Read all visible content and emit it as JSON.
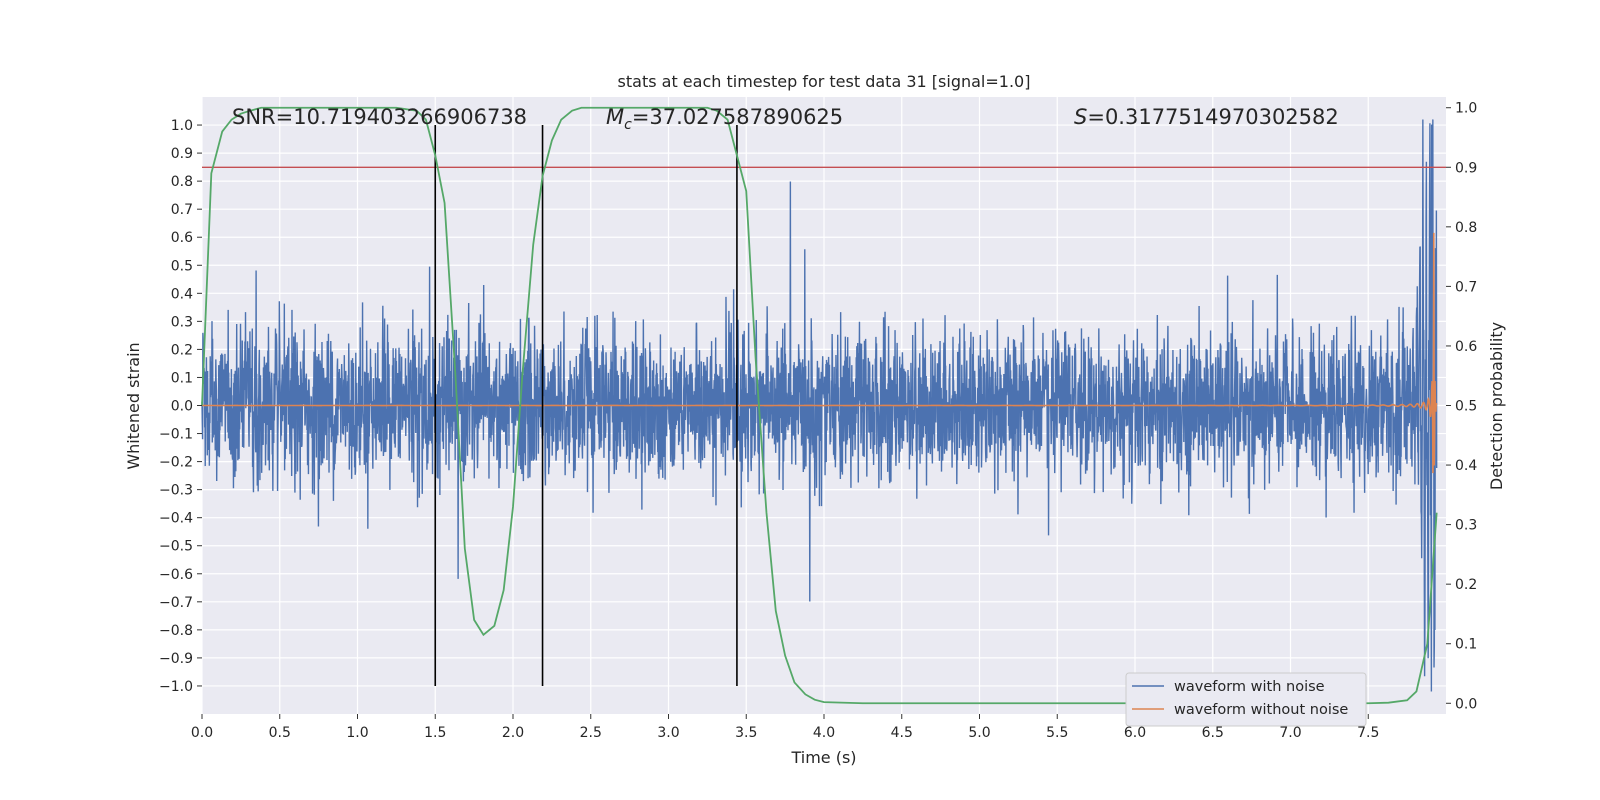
{
  "chart_data": {
    "type": "line",
    "title": "stats at each timestep for test data 31 [signal=1.0]",
    "xlabel": "Time (s)",
    "ylabel": "Whitened strain",
    "y2label": "Detection probability",
    "xlim": [
      0,
      8.0
    ],
    "ylim": [
      -1.1,
      1.1
    ],
    "y2lim": [
      -0.018,
      1.018
    ],
    "x_ticks": [
      "0.0",
      "0.5",
      "1.0",
      "1.5",
      "2.0",
      "2.5",
      "3.0",
      "3.5",
      "4.0",
      "4.5",
      "5.0",
      "5.5",
      "6.0",
      "6.5",
      "7.0",
      "7.5"
    ],
    "y_ticks": [
      "1.0",
      "0.9",
      "0.8",
      "0.7",
      "0.6",
      "0.5",
      "0.4",
      "0.3",
      "0.2",
      "0.1",
      "0.0",
      "−0.1",
      "−0.2",
      "−0.3",
      "−0.4",
      "−0.5",
      "−0.6",
      "−0.7",
      "−0.8",
      "−0.9",
      "−1.0"
    ],
    "y2_ticks": [
      "1.0",
      "0.9",
      "0.8",
      "0.7",
      "0.6",
      "0.5",
      "0.4",
      "0.3",
      "0.2",
      "0.1",
      "0.0"
    ],
    "grid": true,
    "legend_position": "lower-right",
    "annotations": {
      "snr": "SNR=10.719403266906738",
      "mc_symbol": "M",
      "mc_sub": "c",
      "mc_value": "=37.027587890625",
      "s_symbol": "S",
      "s_value": "=0.3177514970302582"
    },
    "threshold_line": {
      "y2": 0.9,
      "color": "#c44e52"
    },
    "vertical_lines_x": [
      1.5,
      2.19,
      3.44
    ],
    "vertical_lines_range": [
      -1.0,
      1.0
    ],
    "series": [
      {
        "name": "waveform with noise",
        "color": "#4c72b0",
        "kind": "noise",
        "std": 0.13,
        "duration": 7.94,
        "peak_t": 7.91,
        "peak_value": 1.0
      },
      {
        "name": "waveform without noise",
        "color": "#dd8452",
        "kind": "chirp",
        "merger_t": 7.92,
        "max_amplitude": 0.95
      },
      {
        "name": "detection probability",
        "color": "#55a868",
        "axis": "right",
        "t": [
          0.0,
          0.06,
          0.13,
          0.19,
          0.25,
          0.31,
          0.38,
          0.5,
          0.75,
          1.0,
          1.25,
          1.38,
          1.44,
          1.5,
          1.56,
          1.63,
          1.69,
          1.75,
          1.81,
          1.88,
          1.94,
          2.0,
          2.06,
          2.13,
          2.19,
          2.25,
          2.31,
          2.38,
          2.44,
          2.5,
          2.75,
          3.0,
          3.25,
          3.31,
          3.38,
          3.44,
          3.5,
          3.56,
          3.63,
          3.69,
          3.75,
          3.81,
          3.88,
          3.94,
          4.0,
          4.25,
          5.0,
          6.0,
          7.0,
          7.5,
          7.63,
          7.75,
          7.81,
          7.88,
          7.94
        ],
        "values": [
          0.5,
          0.89,
          0.96,
          0.98,
          0.99,
          0.995,
          1.0,
          1.0,
          1.0,
          1.0,
          1.0,
          0.995,
          0.98,
          0.92,
          0.84,
          0.55,
          0.26,
          0.14,
          0.115,
          0.13,
          0.19,
          0.33,
          0.55,
          0.77,
          0.885,
          0.945,
          0.98,
          0.995,
          1.0,
          1.0,
          1.0,
          1.0,
          1.0,
          0.995,
          0.98,
          0.92,
          0.86,
          0.58,
          0.32,
          0.155,
          0.08,
          0.035,
          0.015,
          0.006,
          0.002,
          0.0,
          0.0,
          0.0,
          0.0,
          0.0,
          0.001,
          0.005,
          0.02,
          0.1,
          0.32
        ]
      }
    ]
  }
}
